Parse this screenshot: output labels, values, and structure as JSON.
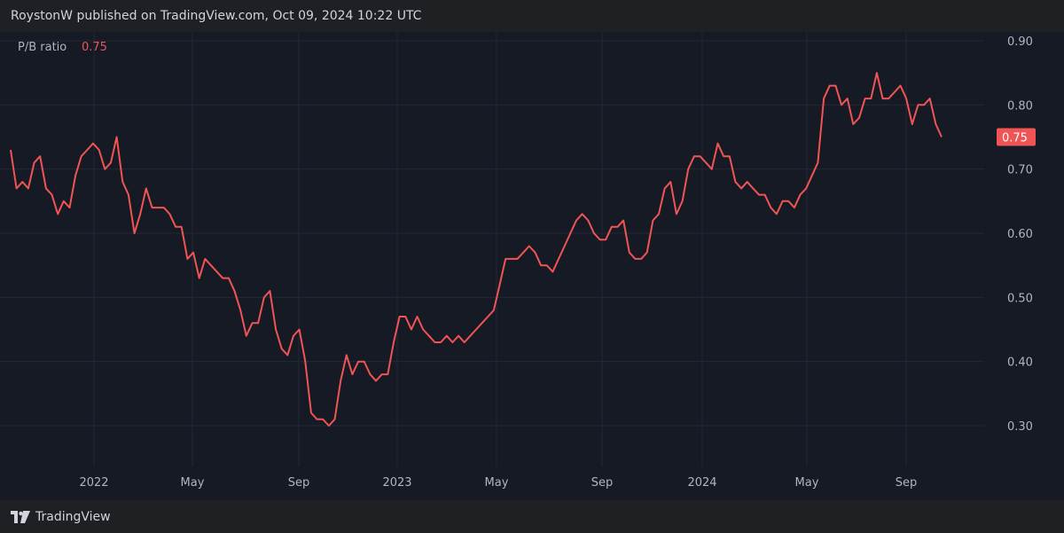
{
  "header": {
    "text": "RoystonW published on TradingView.com, Oct 09, 2024 10:22 UTC"
  },
  "legend": {
    "label": "P/B ratio",
    "value": "0.75"
  },
  "footer": {
    "brand": "TradingView"
  },
  "colors": {
    "background": "#161a25",
    "line": "#f05454",
    "grid": "#242836",
    "text": "#b2b5be"
  },
  "chart_data": {
    "type": "line",
    "series": [
      {
        "name": "P/B ratio",
        "values": [
          0.73,
          0.67,
          0.68,
          0.67,
          0.71,
          0.72,
          0.67,
          0.66,
          0.63,
          0.65,
          0.64,
          0.69,
          0.72,
          0.73,
          0.74,
          0.73,
          0.7,
          0.71,
          0.75,
          0.68,
          0.66,
          0.6,
          0.63,
          0.67,
          0.64,
          0.64,
          0.64,
          0.63,
          0.61,
          0.61,
          0.56,
          0.57,
          0.53,
          0.56,
          0.55,
          0.54,
          0.53,
          0.53,
          0.51,
          0.48,
          0.44,
          0.46,
          0.46,
          0.5,
          0.51,
          0.45,
          0.42,
          0.41,
          0.44,
          0.45,
          0.4,
          0.32,
          0.31,
          0.31,
          0.3,
          0.31,
          0.37,
          0.41,
          0.38,
          0.4,
          0.4,
          0.38,
          0.37,
          0.38,
          0.38,
          0.43,
          0.47,
          0.47,
          0.45,
          0.47,
          0.45,
          0.44,
          0.43,
          0.43,
          0.44,
          0.43,
          0.44,
          0.43,
          0.44,
          0.45,
          0.46,
          0.47,
          0.48,
          0.52,
          0.56,
          0.56,
          0.56,
          0.57,
          0.58,
          0.57,
          0.55,
          0.55,
          0.54,
          0.56,
          0.58,
          0.6,
          0.62,
          0.63,
          0.62,
          0.6,
          0.59,
          0.59,
          0.61,
          0.61,
          0.62,
          0.57,
          0.56,
          0.56,
          0.57,
          0.62,
          0.63,
          0.67,
          0.68,
          0.63,
          0.65,
          0.7,
          0.72,
          0.72,
          0.71,
          0.7,
          0.74,
          0.72,
          0.72,
          0.68,
          0.67,
          0.68,
          0.67,
          0.66,
          0.66,
          0.64,
          0.63,
          0.65,
          0.65,
          0.64,
          0.66,
          0.67,
          0.69,
          0.71,
          0.81,
          0.83,
          0.83,
          0.8,
          0.81,
          0.77,
          0.78,
          0.81,
          0.81,
          0.85,
          0.81,
          0.81,
          0.82,
          0.83,
          0.81,
          0.77,
          0.8,
          0.8,
          0.81,
          0.77,
          0.75
        ]
      }
    ],
    "x_ticks": [
      "2022",
      "May",
      "Sep",
      "2023",
      "May",
      "Sep",
      "2024",
      "May",
      "Sep"
    ],
    "y_ticks": [
      "0.90",
      "0.80",
      "0.70",
      "0.60",
      "0.50",
      "0.40",
      "0.30"
    ],
    "ylim": [
      0.28,
      0.9
    ],
    "last_value_label": "0.75",
    "grid": true,
    "legend_position": "top-left"
  }
}
